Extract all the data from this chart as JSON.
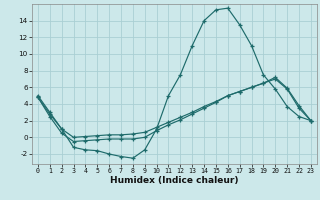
{
  "xlabel": "Humidex (Indice chaleur)",
  "bg_color": "#cce8ea",
  "grid_color": "#aacfd4",
  "line_color": "#1e6b6b",
  "xlim": [
    -0.5,
    23.5
  ],
  "ylim": [
    -3.2,
    16.0
  ],
  "xticks": [
    0,
    1,
    2,
    3,
    4,
    5,
    6,
    7,
    8,
    9,
    10,
    11,
    12,
    13,
    14,
    15,
    16,
    17,
    18,
    19,
    20,
    21,
    22,
    23
  ],
  "yticks": [
    -2,
    0,
    2,
    4,
    6,
    8,
    10,
    12,
    14
  ],
  "curve1_x": [
    0,
    1,
    2,
    3,
    4,
    5,
    6,
    7,
    8,
    9,
    10,
    11,
    12,
    13,
    14,
    15,
    16,
    17,
    18,
    19,
    20,
    21,
    22,
    23
  ],
  "curve1_y": [
    5.0,
    3.0,
    1.0,
    -1.2,
    -1.5,
    -1.6,
    -2.0,
    -2.3,
    -2.5,
    -1.5,
    1.0,
    5.0,
    7.5,
    11.0,
    14.0,
    15.3,
    15.5,
    13.5,
    11.0,
    7.5,
    5.8,
    3.7,
    2.5,
    2.0
  ],
  "curve2_x": [
    0,
    1,
    2,
    3,
    4,
    5,
    6,
    7,
    8,
    9,
    10,
    11,
    12,
    13,
    14,
    15,
    16,
    17,
    18,
    19,
    20,
    21,
    22,
    23
  ],
  "curve2_y": [
    4.8,
    2.5,
    0.5,
    -0.5,
    -0.4,
    -0.3,
    -0.2,
    -0.2,
    -0.2,
    0.0,
    0.8,
    1.5,
    2.1,
    2.8,
    3.5,
    4.2,
    5.0,
    5.5,
    6.0,
    6.5,
    7.0,
    5.8,
    3.5,
    2.0
  ],
  "curve3_x": [
    0,
    1,
    2,
    3,
    4,
    5,
    6,
    7,
    8,
    9,
    10,
    11,
    12,
    13,
    14,
    15,
    16,
    17,
    18,
    19,
    20,
    21,
    22,
    23
  ],
  "curve3_y": [
    4.8,
    2.8,
    1.0,
    0.0,
    0.1,
    0.2,
    0.3,
    0.3,
    0.4,
    0.6,
    1.2,
    1.8,
    2.4,
    3.0,
    3.7,
    4.3,
    5.0,
    5.5,
    6.0,
    6.5,
    7.2,
    5.9,
    3.8,
    2.0
  ]
}
